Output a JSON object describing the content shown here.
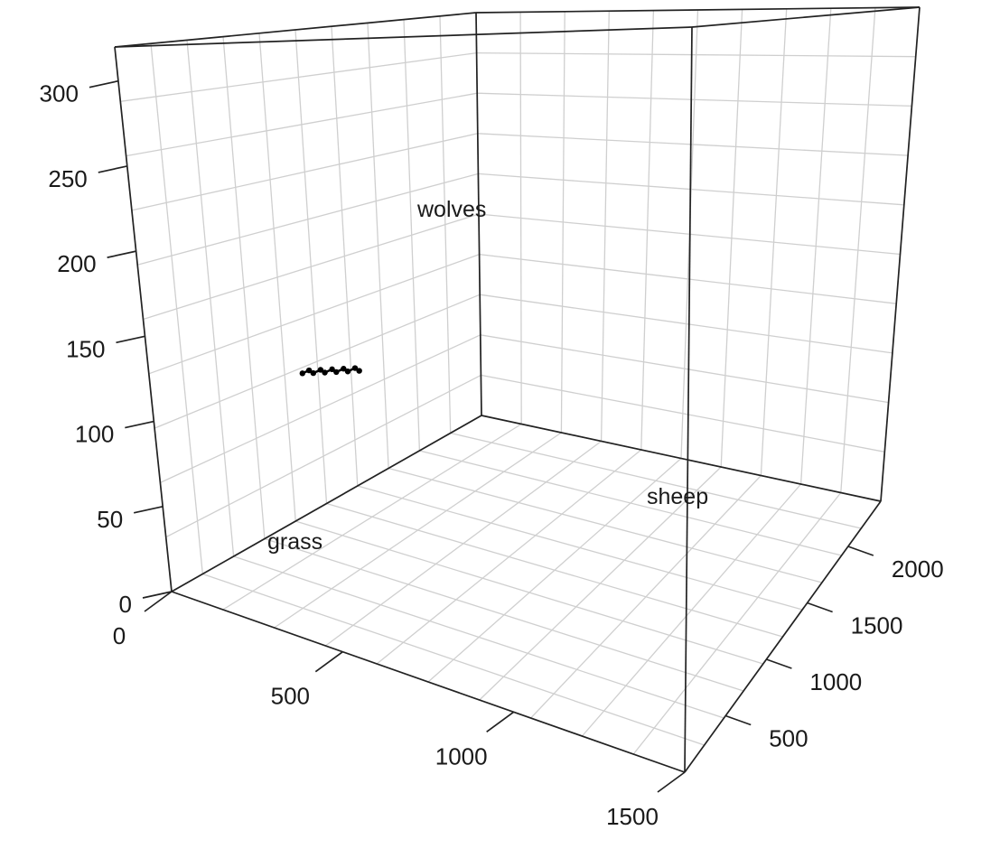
{
  "chart_data": {
    "type": "scatter",
    "projection": "3d",
    "title": "",
    "grid": true,
    "axes": {
      "x": {
        "label": "grass",
        "range": [
          0,
          1500
        ],
        "ticks": [
          0,
          500,
          1000,
          1500
        ]
      },
      "y": {
        "label": "sheep",
        "range": [
          0,
          2400
        ],
        "ticks": [
          500,
          1000,
          1500,
          2000
        ]
      },
      "z": {
        "label": "wolves",
        "range": [
          0,
          320
        ],
        "ticks": [
          0,
          50,
          100,
          150,
          200,
          250,
          300
        ]
      }
    },
    "series": [
      {
        "mode": "lines+markers",
        "color": "#000000",
        "x": [
          30,
          45,
          60,
          75,
          90,
          105,
          120,
          135,
          150,
          165,
          180
        ],
        "y": [
          1020,
          1035,
          1030,
          1050,
          1045,
          1065,
          1060,
          1080,
          1075,
          1095,
          1090
        ],
        "z": [
          96,
          98,
          97,
          99,
          98,
          100,
          99,
          101,
          100,
          102,
          101
        ]
      }
    ]
  }
}
